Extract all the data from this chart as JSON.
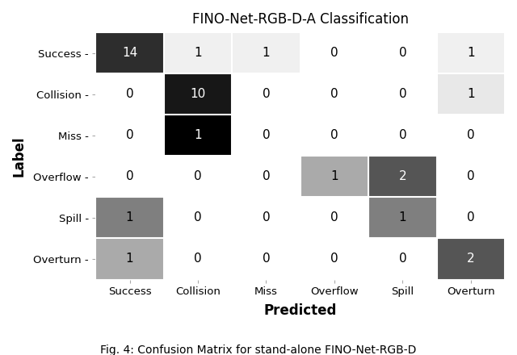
{
  "title": "FINO-Net-RGB-D-A Classification",
  "xlabel": "Predicted",
  "ylabel": "Label",
  "caption": "Fig. 4: Confusion Matrix for stand-alone FINO-Net-RGB-D",
  "classes": [
    "Success",
    "Collision",
    "Miss",
    "Overflow",
    "Spill",
    "Overturn"
  ],
  "matrix": [
    [
      14,
      1,
      1,
      0,
      0,
      1
    ],
    [
      0,
      10,
      0,
      0,
      0,
      1
    ],
    [
      0,
      1,
      0,
      0,
      0,
      0
    ],
    [
      0,
      0,
      0,
      1,
      2,
      0
    ],
    [
      1,
      0,
      0,
      0,
      1,
      0
    ],
    [
      1,
      0,
      0,
      0,
      0,
      2
    ]
  ],
  "background_color": "#ffffff",
  "title_fontsize": 12,
  "label_fontsize": 11,
  "tick_fontsize": 9.5,
  "cell_fontsize": 11,
  "caption_fontsize": 10
}
